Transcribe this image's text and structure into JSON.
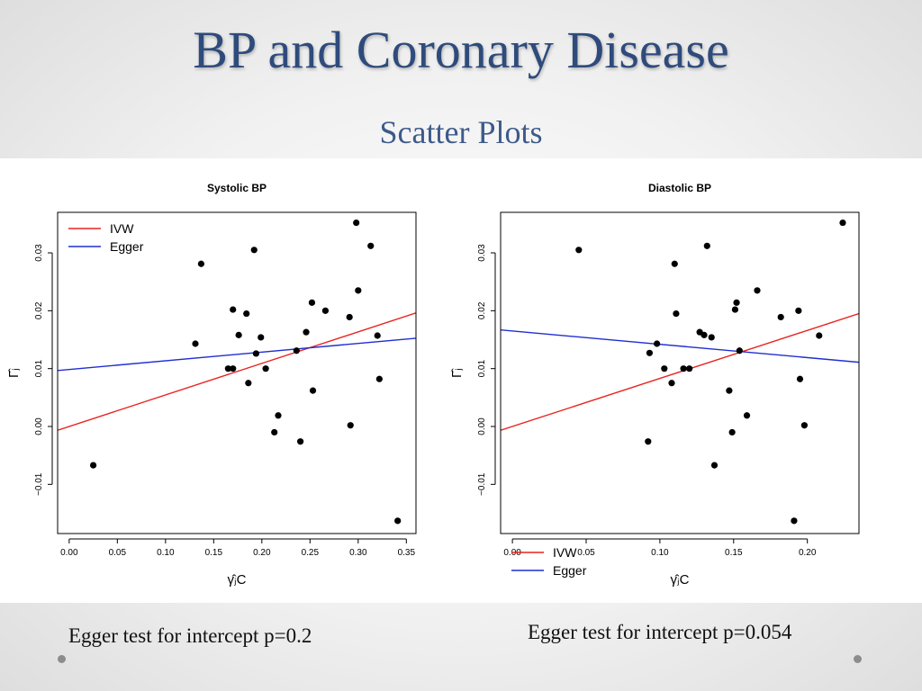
{
  "slide": {
    "title": "BP and Coronary Disease",
    "subtitle": "Scatter Plots"
  },
  "notes": {
    "left": "Egger test for intercept p=0.2",
    "right": "Egger test for intercept p=0.054"
  },
  "colors": {
    "ivw": "#e8231f",
    "egger": "#1f2fd1",
    "points": "#000000",
    "title": "#2e4b7c"
  },
  "chart_data": [
    {
      "type": "scatter",
      "title": "Systolic BP",
      "xlabel": "γ̂ⱼC",
      "ylabel": "Γ̂ⱼ",
      "xlim": [
        -0.012,
        0.36
      ],
      "ylim": [
        -0.0185,
        0.037
      ],
      "xticks": [
        0.0,
        0.05,
        0.1,
        0.15,
        0.2,
        0.25,
        0.3,
        0.35
      ],
      "xtick_labels": [
        "0.00",
        "0.05",
        "0.10",
        "0.15",
        "0.20",
        "0.25",
        "0.30",
        "0.35"
      ],
      "yticks": [
        -0.01,
        0.0,
        0.01,
        0.02,
        0.03
      ],
      "ytick_labels": [
        "−0.01",
        "0.00",
        "0.01",
        "0.02",
        "0.03"
      ],
      "legend": {
        "position": "top-left",
        "entries": [
          "IVW",
          "Egger"
        ]
      },
      "points": [
        [
          0.025,
          -0.0067
        ],
        [
          0.131,
          0.0143
        ],
        [
          0.137,
          0.0281
        ],
        [
          0.165,
          0.01
        ],
        [
          0.17,
          0.01
        ],
        [
          0.17,
          0.0202
        ],
        [
          0.176,
          0.0158
        ],
        [
          0.184,
          0.0195
        ],
        [
          0.186,
          0.0075
        ],
        [
          0.192,
          0.0305
        ],
        [
          0.194,
          0.0126
        ],
        [
          0.199,
          0.0154
        ],
        [
          0.204,
          0.01
        ],
        [
          0.213,
          -0.001
        ],
        [
          0.217,
          0.0019
        ],
        [
          0.236,
          0.0131
        ],
        [
          0.24,
          -0.0026
        ],
        [
          0.246,
          0.0163
        ],
        [
          0.252,
          0.0214
        ],
        [
          0.253,
          0.0062
        ],
        [
          0.266,
          0.02
        ],
        [
          0.291,
          0.0189
        ],
        [
          0.292,
          0.0002
        ],
        [
          0.298,
          0.0352
        ],
        [
          0.3,
          0.0235
        ],
        [
          0.313,
          0.0312
        ],
        [
          0.32,
          0.0157
        ],
        [
          0.322,
          0.0082
        ],
        [
          0.341,
          -0.0163
        ]
      ],
      "lines": [
        {
          "name": "IVW",
          "intercept": 0.0,
          "slope": 0.0545
        },
        {
          "name": "Egger",
          "intercept": 0.00985,
          "slope": 0.015
        }
      ]
    },
    {
      "type": "scatter",
      "title": "Diastolic BP",
      "xlabel": "γ̂ⱼC",
      "ylabel": "Γ̂ⱼ",
      "xlim": [
        -0.008,
        0.235
      ],
      "ylim": [
        -0.0185,
        0.037
      ],
      "xticks": [
        0.0,
        0.05,
        0.1,
        0.15,
        0.2
      ],
      "xtick_labels": [
        "0.00",
        "0.05",
        "0.10",
        "0.15",
        "0.20"
      ],
      "yticks": [
        -0.01,
        0.0,
        0.01,
        0.02,
        0.03
      ],
      "ytick_labels": [
        "−0.01",
        "0.00",
        "0.01",
        "0.02",
        "0.03"
      ],
      "legend": {
        "position": "bottom-left",
        "entries": [
          "IVW",
          "Egger"
        ]
      },
      "points": [
        [
          0.045,
          0.0305
        ],
        [
          0.092,
          -0.0026
        ],
        [
          0.093,
          0.0127
        ],
        [
          0.098,
          0.0143
        ],
        [
          0.103,
          0.01
        ],
        [
          0.108,
          0.0075
        ],
        [
          0.11,
          0.0281
        ],
        [
          0.111,
          0.0195
        ],
        [
          0.116,
          0.01
        ],
        [
          0.12,
          0.01
        ],
        [
          0.127,
          0.0163
        ],
        [
          0.13,
          0.0158
        ],
        [
          0.132,
          0.0312
        ],
        [
          0.135,
          0.0154
        ],
        [
          0.137,
          -0.0067
        ],
        [
          0.147,
          0.0062
        ],
        [
          0.149,
          -0.001
        ],
        [
          0.151,
          0.0202
        ],
        [
          0.152,
          0.0214
        ],
        [
          0.154,
          0.0131
        ],
        [
          0.159,
          0.0019
        ],
        [
          0.166,
          0.0235
        ],
        [
          0.182,
          0.0189
        ],
        [
          0.191,
          -0.0163
        ],
        [
          0.194,
          0.02
        ],
        [
          0.195,
          0.0082
        ],
        [
          0.198,
          0.0002
        ],
        [
          0.208,
          0.0157
        ],
        [
          0.224,
          0.0352
        ]
      ],
      "lines": [
        {
          "name": "IVW",
          "intercept": 0.0,
          "slope": 0.083
        },
        {
          "name": "Egger",
          "intercept": 0.0165,
          "slope": -0.023
        }
      ]
    }
  ]
}
